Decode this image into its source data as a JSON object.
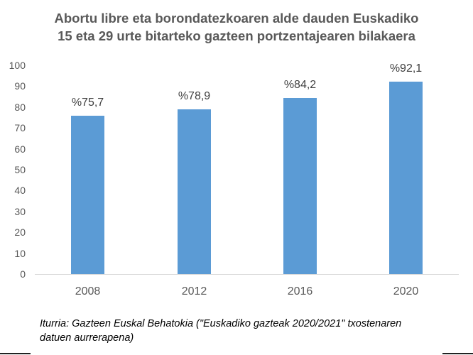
{
  "chart_data": {
    "type": "bar",
    "title": "Abortu libre eta borondatezkoaren alde dauden Euskadiko 15 eta 29 urte bitarteko gazteen portzentajearen bilakaera",
    "title_lines": [
      "Abortu libre eta borondatezkoaren alde dauden Euskadiko",
      "15 eta 29 urte bitarteko gazteen portzentajearen bilakaera"
    ],
    "categories": [
      "2008",
      "2012",
      "2016",
      "2020"
    ],
    "values": [
      75.7,
      78.9,
      84.2,
      92.1
    ],
    "data_labels": [
      "%75,7",
      "%78,9",
      "%84,2",
      "%92,1"
    ],
    "xlabel": "",
    "ylabel": "",
    "ylim": [
      0,
      100
    ],
    "yticks": [
      "0",
      "10",
      "20",
      "30",
      "40",
      "50",
      "60",
      "70",
      "80",
      "90",
      "100"
    ],
    "grid": false,
    "legend": null,
    "bar_color": "#5B9BD5"
  },
  "source_note": {
    "line1": "Iturria: Gazteen Euskal Behatokia (\"Euskadiko gazteak 2020/2021\" txostenaren",
    "line2": "datuen aurrerapena)"
  }
}
